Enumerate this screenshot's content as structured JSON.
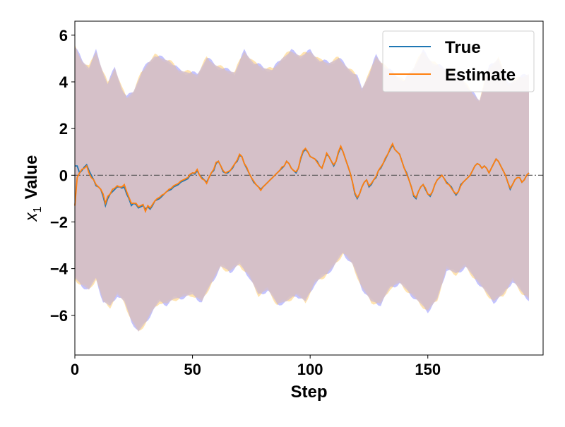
{
  "chart_data": {
    "type": "line",
    "title": "",
    "xlabel": "Step",
    "ylabel_main": "Value",
    "ylabel_symbol": "x",
    "ylabel_subscript": "1",
    "xlim": [
      0,
      199
    ],
    "ylim": [
      -7.7,
      6.6
    ],
    "xticks": [
      0,
      50,
      100,
      150
    ],
    "xtick_labels": [
      "0",
      "50",
      "100",
      "150"
    ],
    "yticks": [
      6,
      4,
      2,
      0,
      -2,
      -4,
      -6
    ],
    "ytick_labels": [
      "6",
      "4",
      "2",
      "0",
      "−2",
      "−4",
      "−6"
    ],
    "legend_position": "top-right",
    "grid": false,
    "reference_line": {
      "y": 0,
      "style": "dash-dot",
      "color": "#555555"
    },
    "colors": {
      "true": "#1f77b4",
      "estimate": "#ff7f0e",
      "band_true": "#7b7bff",
      "band_estimate": "#ffc04d",
      "band_overlap": "#d3bfcc"
    },
    "series": [
      {
        "name": "True",
        "x_step": 1,
        "values": [
          0.4,
          0.4,
          0.1,
          0.2,
          0.35,
          0.45,
          0.2,
          0.0,
          -0.2,
          -0.45,
          -0.5,
          -0.6,
          -0.9,
          -1.3,
          -1.0,
          -0.8,
          -0.7,
          -0.6,
          -0.5,
          -0.5,
          -0.55,
          -0.5,
          -0.8,
          -1.0,
          -1.3,
          -1.2,
          -1.25,
          -1.4,
          -1.35,
          -1.3,
          -1.45,
          -1.35,
          -1.45,
          -1.3,
          -1.1,
          -1.05,
          -1.0,
          -0.9,
          -0.8,
          -0.7,
          -0.65,
          -0.6,
          -0.5,
          -0.45,
          -0.4,
          -0.3,
          -0.25,
          -0.2,
          -0.15,
          0.0,
          0.1,
          0.05,
          0.2,
          0.0,
          -0.1,
          -0.2,
          -0.3,
          -0.1,
          0.1,
          0.2,
          0.5,
          0.6,
          0.4,
          0.15,
          0.1,
          0.1,
          0.2,
          0.3,
          0.5,
          0.6,
          0.85,
          0.8,
          0.5,
          0.3,
          0.1,
          -0.1,
          -0.3,
          -0.4,
          -0.5,
          -0.6,
          -0.5,
          -0.4,
          -0.3,
          -0.2,
          -0.1,
          0.0,
          0.1,
          0.2,
          0.3,
          0.4,
          0.6,
          0.5,
          0.3,
          0.2,
          0.1,
          0.3,
          0.7,
          1.0,
          1.1,
          1.0,
          0.8,
          0.75,
          0.7,
          0.6,
          0.4,
          0.3,
          0.6,
          0.9,
          0.8,
          0.6,
          0.4,
          0.6,
          0.95,
          1.2,
          1.0,
          0.7,
          0.4,
          0.1,
          -0.3,
          -0.8,
          -1.0,
          -0.8,
          -0.5,
          -0.3,
          -0.2,
          -0.5,
          -0.4,
          -0.2,
          -0.1,
          0.2,
          0.3,
          0.5,
          0.7,
          0.9,
          1.1,
          1.3,
          1.1,
          1.0,
          0.9,
          0.6,
          0.3,
          0.1,
          -0.2,
          -0.5,
          -0.9,
          -1.0,
          -0.7,
          -0.5,
          -0.4,
          -0.6,
          -0.8,
          -0.9,
          -0.7,
          -0.4,
          -0.2,
          -0.1,
          0.0,
          -0.15,
          -0.3,
          -0.4,
          -0.5,
          -0.7,
          -0.85,
          -0.7,
          -0.4,
          -0.3,
          -0.2,
          -0.1,
          0.0,
          0.2,
          0.4,
          0.5,
          0.45,
          0.3,
          0.4,
          0.3,
          0.1,
          0.3,
          0.5,
          0.7,
          0.6,
          0.4,
          0.2,
          0.0,
          -0.3,
          -0.6,
          -0.4,
          -0.2,
          -0.1,
          -0.1,
          -0.3,
          -0.2,
          0.0,
          0.1
        ]
      },
      {
        "name": "Estimate",
        "x_step": 1,
        "values": [
          -1.3,
          -0.1,
          0.1,
          0.25,
          0.3,
          0.4,
          0.1,
          -0.1,
          -0.2,
          -0.4,
          -0.5,
          -0.6,
          -0.8,
          -1.2,
          -0.9,
          -0.8,
          -0.6,
          -0.55,
          -0.45,
          -0.5,
          -0.5,
          -0.4,
          -0.7,
          -0.95,
          -1.2,
          -1.2,
          -1.2,
          -1.35,
          -1.3,
          -1.25,
          -1.55,
          -1.3,
          -1.4,
          -1.25,
          -1.1,
          -1.0,
          -0.95,
          -0.85,
          -0.8,
          -0.7,
          -0.6,
          -0.55,
          -0.45,
          -0.4,
          -0.35,
          -0.25,
          -0.2,
          -0.15,
          -0.1,
          0.05,
          0.1,
          0.1,
          0.25,
          0.0,
          -0.15,
          -0.2,
          -0.35,
          -0.1,
          0.1,
          0.25,
          0.55,
          0.6,
          0.4,
          0.2,
          0.1,
          0.15,
          0.2,
          0.35,
          0.5,
          0.65,
          0.9,
          0.8,
          0.5,
          0.35,
          0.1,
          -0.1,
          -0.25,
          -0.4,
          -0.5,
          -0.65,
          -0.5,
          -0.4,
          -0.3,
          -0.2,
          -0.1,
          0.0,
          0.1,
          0.2,
          0.35,
          0.4,
          0.6,
          0.5,
          0.3,
          0.2,
          0.15,
          0.3,
          0.75,
          1.05,
          1.15,
          1.0,
          0.8,
          0.75,
          0.7,
          0.55,
          0.4,
          0.3,
          0.6,
          0.95,
          0.8,
          0.6,
          0.45,
          0.6,
          1.0,
          1.25,
          1.0,
          0.7,
          0.4,
          0.1,
          -0.3,
          -0.75,
          -0.95,
          -0.8,
          -0.5,
          -0.3,
          -0.2,
          -0.45,
          -0.35,
          -0.2,
          -0.05,
          0.2,
          0.35,
          0.5,
          0.75,
          0.9,
          1.15,
          1.35,
          1.1,
          1.0,
          0.9,
          0.6,
          0.3,
          0.05,
          -0.2,
          -0.5,
          -0.85,
          -0.95,
          -0.7,
          -0.5,
          -0.4,
          -0.55,
          -0.8,
          -0.85,
          -0.7,
          -0.4,
          -0.2,
          -0.1,
          0.0,
          -0.15,
          -0.35,
          -0.4,
          -0.55,
          -0.7,
          -0.8,
          -0.7,
          -0.45,
          -0.3,
          -0.2,
          -0.1,
          0.0,
          0.2,
          0.4,
          0.5,
          0.45,
          0.3,
          0.4,
          0.3,
          0.1,
          0.3,
          0.5,
          0.7,
          0.6,
          0.4,
          0.2,
          0.0,
          -0.3,
          -0.55,
          -0.4,
          -0.2,
          -0.1,
          -0.1,
          -0.3,
          -0.2,
          0.0,
          0.1
        ]
      }
    ],
    "uncertainty_band": {
      "x_step": 1,
      "upper_anchors": [
        [
          0,
          5.5
        ],
        [
          3,
          4.9
        ],
        [
          6,
          4.6
        ],
        [
          9,
          5.3
        ],
        [
          12,
          4.4
        ],
        [
          14,
          3.9
        ],
        [
          17,
          4.6
        ],
        [
          20,
          3.7
        ],
        [
          22,
          3.3
        ],
        [
          25,
          3.6
        ],
        [
          28,
          4.3
        ],
        [
          31,
          4.8
        ],
        [
          34,
          5.1
        ],
        [
          37,
          5.0
        ],
        [
          40,
          4.9
        ],
        [
          44,
          4.5
        ],
        [
          48,
          4.4
        ],
        [
          52,
          4.3
        ],
        [
          56,
          5.0
        ],
        [
          60,
          4.7
        ],
        [
          64,
          4.5
        ],
        [
          68,
          4.4
        ],
        [
          72,
          5.3
        ],
        [
          76,
          4.8
        ],
        [
          80,
          4.6
        ],
        [
          84,
          4.5
        ],
        [
          88,
          5.0
        ],
        [
          92,
          5.3
        ],
        [
          96,
          5.1
        ],
        [
          100,
          5.3
        ],
        [
          104,
          4.9
        ],
        [
          108,
          4.8
        ],
        [
          112,
          5.0
        ],
        [
          116,
          4.6
        ],
        [
          120,
          4.2
        ],
        [
          122,
          3.7
        ],
        [
          125,
          4.3
        ],
        [
          128,
          5.1
        ],
        [
          132,
          4.6
        ],
        [
          136,
          4.3
        ],
        [
          140,
          4.0
        ],
        [
          144,
          4.6
        ],
        [
          148,
          5.3
        ],
        [
          152,
          4.8
        ],
        [
          156,
          4.6
        ],
        [
          160,
          4.4
        ],
        [
          164,
          4.2
        ],
        [
          168,
          3.6
        ],
        [
          172,
          3.2
        ],
        [
          176,
          4.6
        ],
        [
          180,
          5.0
        ],
        [
          184,
          3.9
        ],
        [
          188,
          4.1
        ],
        [
          192,
          4.3
        ],
        [
          196,
          4.4
        ],
        [
          199,
          4.4
        ]
      ],
      "lower_anchors": [
        [
          0,
          -4.4
        ],
        [
          3,
          -4.7
        ],
        [
          6,
          -4.9
        ],
        [
          9,
          -4.4
        ],
        [
          12,
          -5.4
        ],
        [
          15,
          -5.6
        ],
        [
          18,
          -5.1
        ],
        [
          21,
          -5.4
        ],
        [
          24,
          -6.2
        ],
        [
          27,
          -6.7
        ],
        [
          30,
          -6.3
        ],
        [
          33,
          -5.8
        ],
        [
          36,
          -5.4
        ],
        [
          39,
          -5.5
        ],
        [
          42,
          -5.3
        ],
        [
          46,
          -5.2
        ],
        [
          50,
          -5.1
        ],
        [
          54,
          -5.4
        ],
        [
          58,
          -4.6
        ],
        [
          62,
          -3.9
        ],
        [
          66,
          -4.1
        ],
        [
          70,
          -3.8
        ],
        [
          74,
          -4.3
        ],
        [
          78,
          -5.1
        ],
        [
          82,
          -4.9
        ],
        [
          86,
          -5.5
        ],
        [
          90,
          -5.4
        ],
        [
          94,
          -5.1
        ],
        [
          98,
          -5.4
        ],
        [
          102,
          -4.6
        ],
        [
          106,
          -4.3
        ],
        [
          110,
          -3.9
        ],
        [
          114,
          -3.3
        ],
        [
          118,
          -3.8
        ],
        [
          122,
          -4.8
        ],
        [
          126,
          -5.4
        ],
        [
          130,
          -5.5
        ],
        [
          134,
          -4.8
        ],
        [
          138,
          -4.6
        ],
        [
          142,
          -5.0
        ],
        [
          146,
          -5.4
        ],
        [
          150,
          -5.8
        ],
        [
          154,
          -5.3
        ],
        [
          158,
          -4.0
        ],
        [
          162,
          -4.2
        ],
        [
          166,
          -3.9
        ],
        [
          170,
          -4.4
        ],
        [
          174,
          -4.9
        ],
        [
          178,
          -5.4
        ],
        [
          182,
          -5.1
        ],
        [
          186,
          -4.5
        ],
        [
          190,
          -5.0
        ],
        [
          194,
          -5.4
        ],
        [
          197,
          -4.6
        ],
        [
          199,
          -4.4
        ]
      ]
    }
  }
}
